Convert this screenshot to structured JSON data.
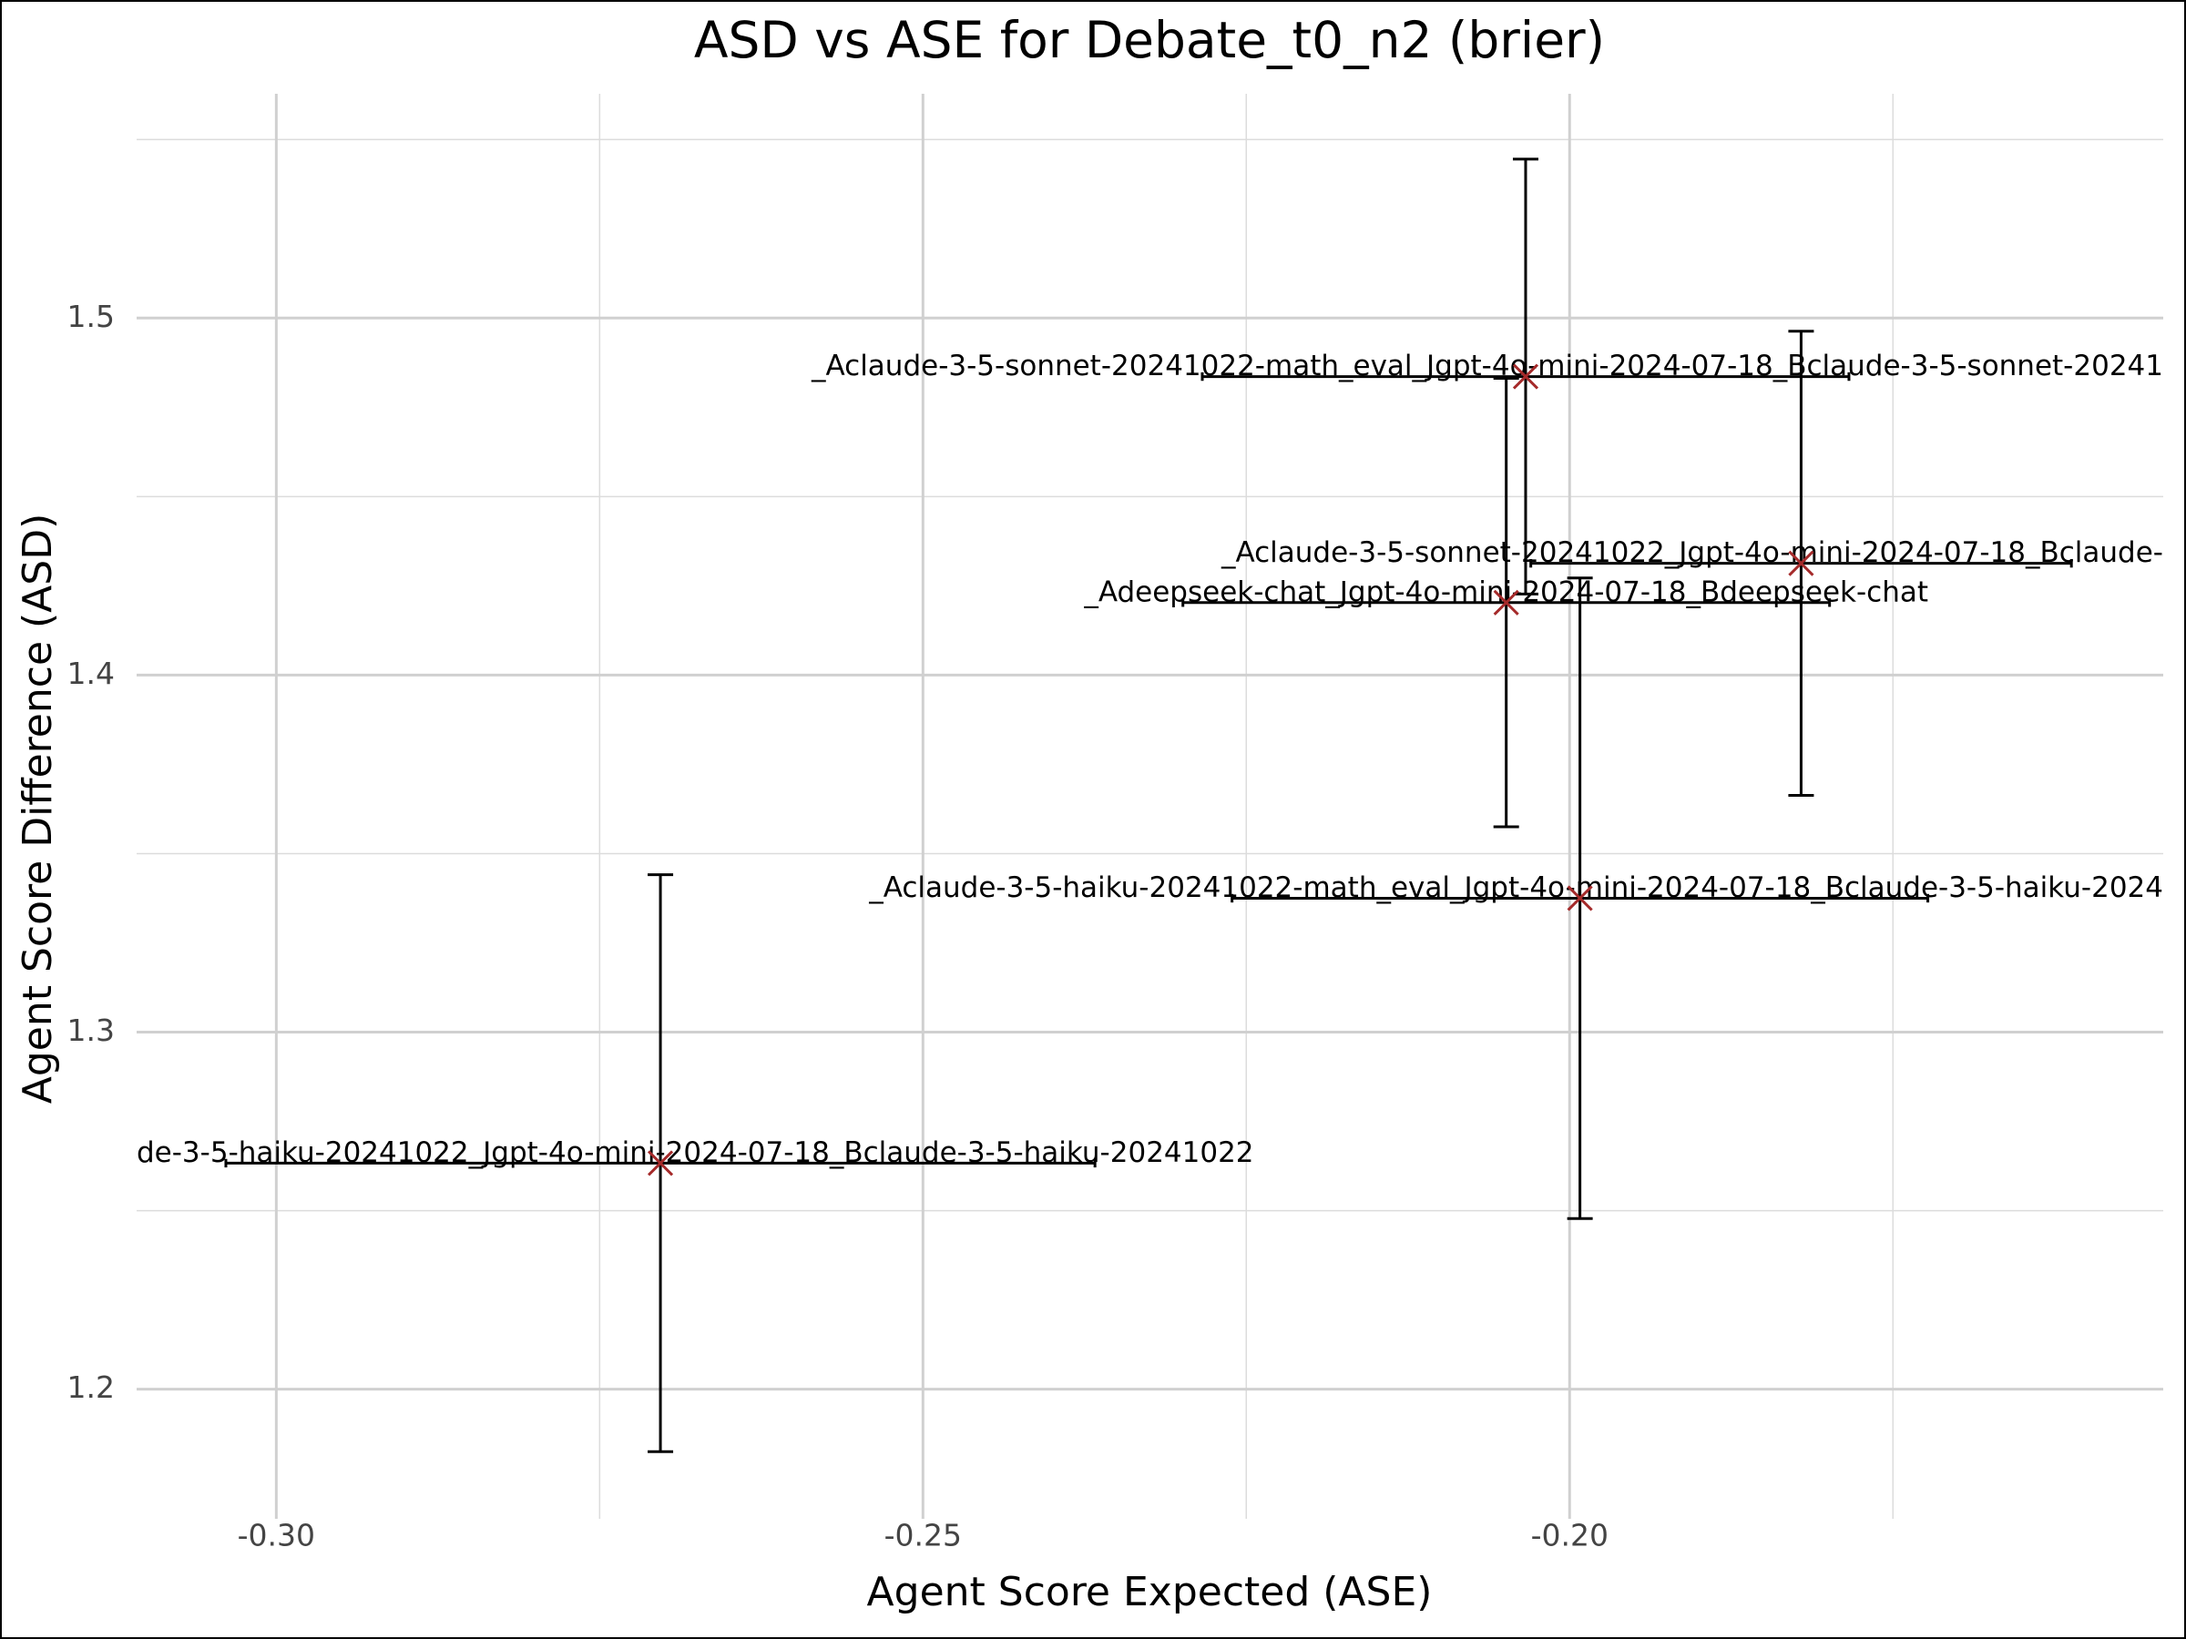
{
  "chart_data": {
    "type": "errorbar-scatter",
    "title": "ASD vs ASE for Debate_t0_n2 (brier)",
    "xlabel": "Agent Score Expected (ASE)",
    "ylabel": "Agent Score Difference (ASD)",
    "xlim": [
      -0.3108,
      -0.1541
    ],
    "ylim": [
      1.1637,
      1.5628
    ],
    "xticks": [
      {
        "value": -0.3,
        "label": "-0.30"
      },
      -0.25,
      {
        "value": -0.2,
        "label": "-0.20"
      }
    ],
    "yticks": [
      1.2,
      1.3,
      1.4,
      1.5
    ],
    "x_minor_ticks": [
      -0.275,
      -0.225,
      -0.175
    ],
    "y_minor_ticks": [
      1.25,
      1.35,
      1.45,
      1.55
    ],
    "grid": true,
    "marker_color": "#a52a2a",
    "errorbar_color": "#000000",
    "points": [
      {
        "label": "_Aclaude-3-5-sonnet-20241022-math_eval_Jgpt-4o-mini-2024-07-18_Bclaude-3-5-sonnet-20241",
        "x": -0.2034,
        "y": 1.4836,
        "xerr": 0.025,
        "yerr": 0.0609
      },
      {
        "label": "_Aclaude-3-5-sonnet-20241022_Jgpt-4o-mini-2024-07-18_Bclaude-",
        "x": -0.1821,
        "y": 1.4313,
        "xerr": 0.0209,
        "yerr": 0.065
      },
      {
        "label": "_Adeepseek-chat_Jgpt-4o-mini-2024-07-18_Bdeepseek-chat",
        "x": -0.2049,
        "y": 1.4203,
        "xerr": 0.025,
        "yerr": 0.0628
      },
      {
        "label": "_Aclaude-3-5-haiku-20241022-math_eval_Jgpt-4o-mini-2024-07-18_Bclaude-3-5-haiku-2024",
        "x": -0.1992,
        "y": 1.3375,
        "xerr": 0.0269,
        "yerr": 0.0897
      },
      {
        "label": "de-3-5-haiku-20241022_Jgpt-4o-mini-2024-07-18_Bclaude-3-5-haiku-20241022",
        "x": -0.2703,
        "y": 1.2633,
        "xerr": 0.0336,
        "yerr": 0.0808
      }
    ]
  }
}
